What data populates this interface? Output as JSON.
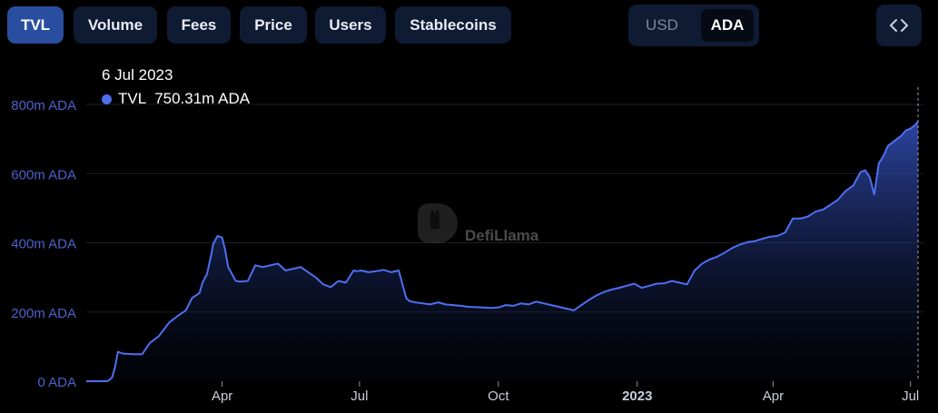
{
  "tabs": [
    {
      "label": "TVL",
      "active": true
    },
    {
      "label": "Volume",
      "active": false
    },
    {
      "label": "Fees",
      "active": false
    },
    {
      "label": "Price",
      "active": false
    },
    {
      "label": "Users",
      "active": false
    },
    {
      "label": "Stablecoins",
      "active": false
    }
  ],
  "currency_toggle": {
    "options": [
      "USD",
      "ADA"
    ],
    "selected": "ADA"
  },
  "embed_icon": "code-brackets-icon",
  "watermark": "DefiLlama",
  "tooltip": {
    "date": "6 Jul 2023",
    "series": "TVL",
    "value": "750.31m ADA"
  },
  "colors": {
    "line": "#4f6ff0",
    "tooltip_dot": "#4f6ff0",
    "active_tab": "#2a4e9f",
    "tab_bg": "#0f1b33"
  },
  "chart_data": {
    "type": "area",
    "title": "",
    "xlabel": "",
    "ylabel": "",
    "ylim": [
      0,
      850
    ],
    "y_ticks": [
      "0 ADA",
      "200m ADA",
      "400m ADA",
      "600m ADA",
      "800m ADA"
    ],
    "x_ticks": [
      "Apr",
      "Jul",
      "Oct",
      "2023",
      "Apr",
      "Jul"
    ],
    "grid": true,
    "series": [
      {
        "name": "TVL",
        "unit": "m ADA",
        "x": [
          "2022-01-01",
          "2022-01-15",
          "2022-01-18",
          "2022-01-20",
          "2022-01-22",
          "2022-01-25",
          "2022-02-01",
          "2022-02-07",
          "2022-02-12",
          "2022-02-18",
          "2022-02-25",
          "2022-03-03",
          "2022-03-08",
          "2022-03-12",
          "2022-03-17",
          "2022-03-19",
          "2022-03-22",
          "2022-03-24",
          "2022-03-25",
          "2022-03-26",
          "2022-03-29",
          "2022-04-01",
          "2022-04-03",
          "2022-04-05",
          "2022-04-10",
          "2022-04-13",
          "2022-04-18",
          "2022-04-23",
          "2022-04-28",
          "2022-05-03",
          "2022-05-08",
          "2022-05-13",
          "2022-05-18",
          "2022-05-23",
          "2022-05-28",
          "2022-06-02",
          "2022-06-07",
          "2022-06-12",
          "2022-06-17",
          "2022-06-22",
          "2022-06-27",
          "2022-06-29",
          "2022-07-02",
          "2022-07-07",
          "2022-07-12",
          "2022-07-17",
          "2022-07-22",
          "2022-07-27",
          "2022-08-01",
          "2022-08-03",
          "2022-08-07",
          "2022-08-12",
          "2022-08-17",
          "2022-08-22",
          "2022-08-27",
          "2022-09-01",
          "2022-09-06",
          "2022-09-11",
          "2022-09-16",
          "2022-09-21",
          "2022-09-26",
          "2022-10-01",
          "2022-10-06",
          "2022-10-11",
          "2022-10-16",
          "2022-10-21",
          "2022-10-26",
          "2022-10-31",
          "2022-11-05",
          "2022-11-10",
          "2022-11-15",
          "2022-11-20",
          "2022-11-25",
          "2022-11-30",
          "2022-12-05",
          "2022-12-10",
          "2022-12-15",
          "2022-12-20",
          "2022-12-25",
          "2022-12-30",
          "2023-01-04",
          "2023-01-09",
          "2023-01-14",
          "2023-01-19",
          "2023-01-24",
          "2023-01-29",
          "2023-02-03",
          "2023-02-08",
          "2023-02-13",
          "2023-02-18",
          "2023-02-23",
          "2023-02-28",
          "2023-03-05",
          "2023-03-10",
          "2023-03-15",
          "2023-03-20",
          "2023-03-25",
          "2023-03-30",
          "2023-04-04",
          "2023-04-09",
          "2023-04-14",
          "2023-04-19",
          "2023-04-24",
          "2023-04-29",
          "2023-05-04",
          "2023-05-09",
          "2023-05-14",
          "2023-05-19",
          "2023-05-24",
          "2023-05-29",
          "2023-06-01",
          "2023-06-04",
          "2023-06-07",
          "2023-06-10",
          "2023-06-13",
          "2023-06-16",
          "2023-06-19",
          "2023-06-22",
          "2023-06-25",
          "2023-06-28",
          "2023-07-01",
          "2023-07-04",
          "2023-07-06"
        ],
        "values": [
          0,
          0,
          10,
          40,
          85,
          80,
          78,
          78,
          110,
          130,
          170,
          190,
          205,
          240,
          255,
          285,
          310,
          350,
          370,
          395,
          420,
          415,
          380,
          330,
          290,
          288,
          290,
          335,
          330,
          335,
          340,
          320,
          325,
          330,
          315,
          300,
          280,
          272,
          290,
          285,
          320,
          318,
          320,
          315,
          318,
          322,
          315,
          320,
          240,
          232,
          228,
          225,
          222,
          228,
          222,
          220,
          218,
          215,
          214,
          213,
          212,
          213,
          220,
          218,
          225,
          222,
          230,
          225,
          220,
          215,
          210,
          205,
          220,
          235,
          248,
          258,
          265,
          270,
          276,
          282,
          270,
          276,
          282,
          283,
          290,
          285,
          280,
          320,
          340,
          352,
          360,
          372,
          385,
          395,
          402,
          405,
          412,
          418,
          420,
          430,
          470,
          470,
          476,
          490,
          496,
          510,
          525,
          550,
          565,
          605,
          610,
          590,
          540,
          630,
          650,
          680,
          690,
          700,
          710,
          725,
          730,
          740,
          750.31
        ]
      }
    ]
  }
}
